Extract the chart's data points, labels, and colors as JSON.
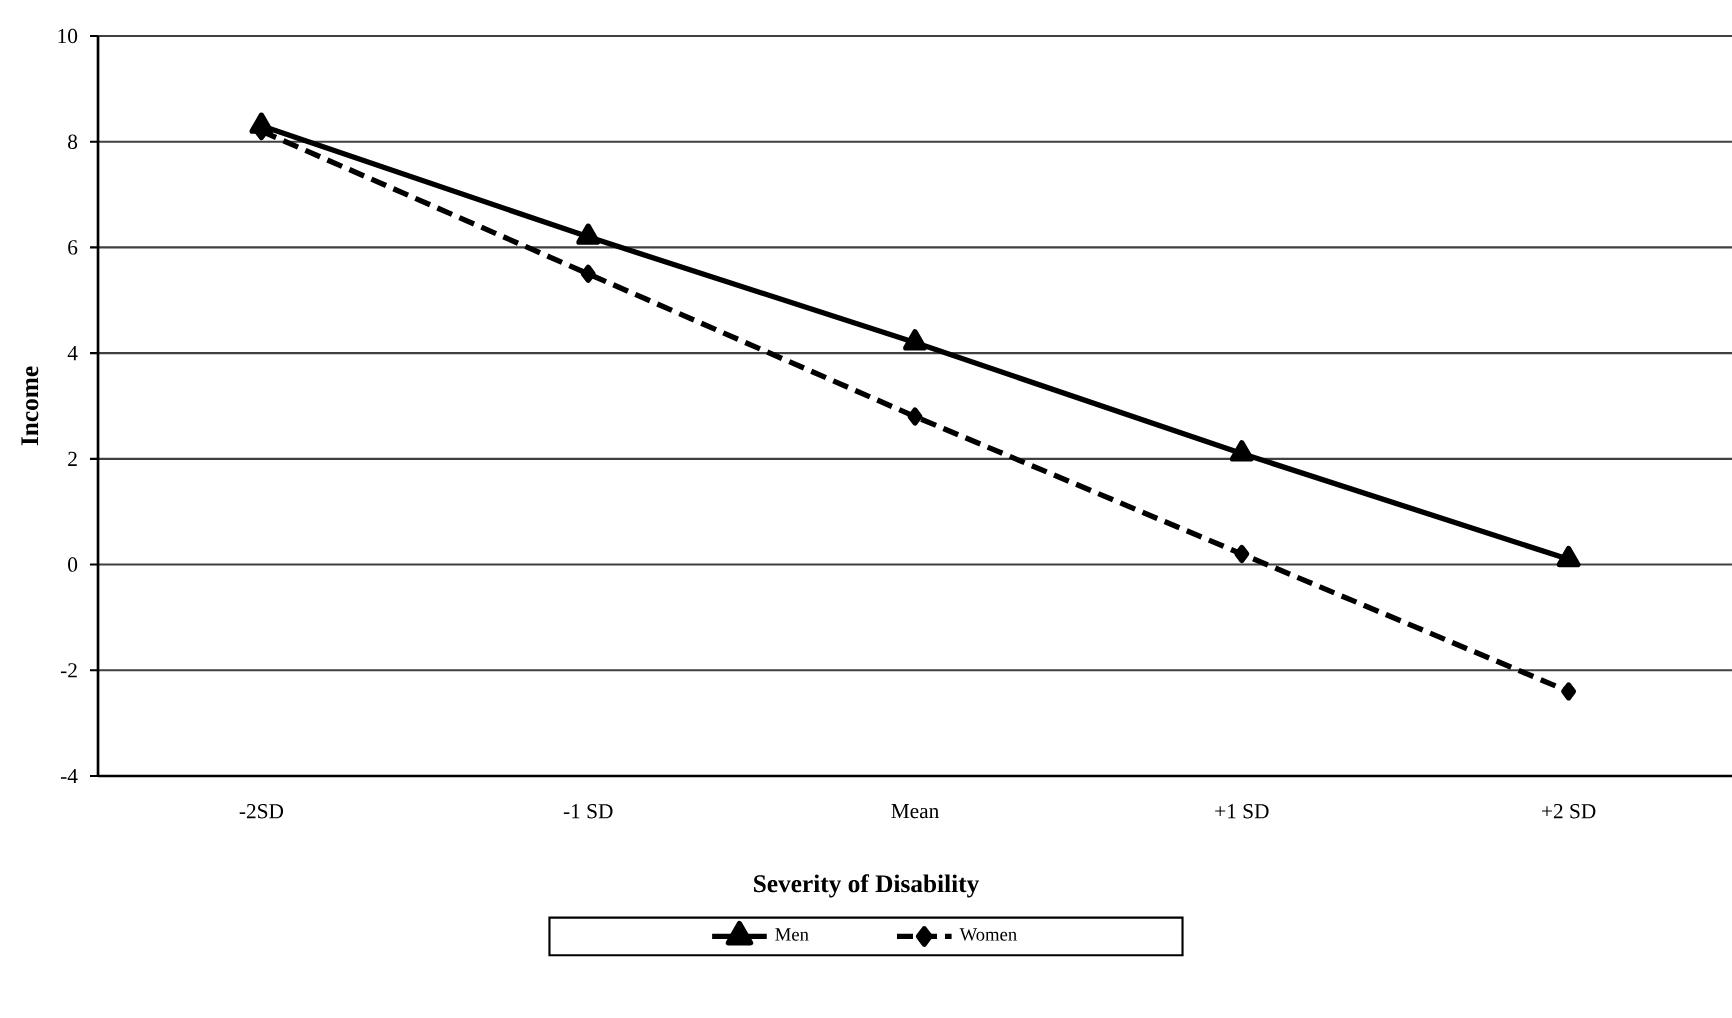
{
  "chart_data": {
    "type": "line",
    "xlabel": "Severity of Disability",
    "ylabel": "Income",
    "categories": [
      "-2SD",
      "-1 SD",
      "Mean",
      "+1 SD",
      "+2 SD"
    ],
    "series": [
      {
        "name": "Men",
        "color": "#000000",
        "values": [
          8.3,
          6.2,
          4.2,
          2.1,
          0.1
        ],
        "marker": "triangle",
        "line_style": "solid"
      },
      {
        "name": "Women",
        "color": "#000000",
        "values": [
          8.2,
          5.5,
          2.8,
          0.2,
          -2.4
        ],
        "marker": "diamond",
        "line_style": "dashed"
      }
    ],
    "ylim": [
      -4,
      10
    ],
    "yticks": [
      -4,
      -2,
      0,
      2,
      4,
      6,
      8,
      10
    ],
    "grid": "y",
    "legend": "bottom"
  }
}
